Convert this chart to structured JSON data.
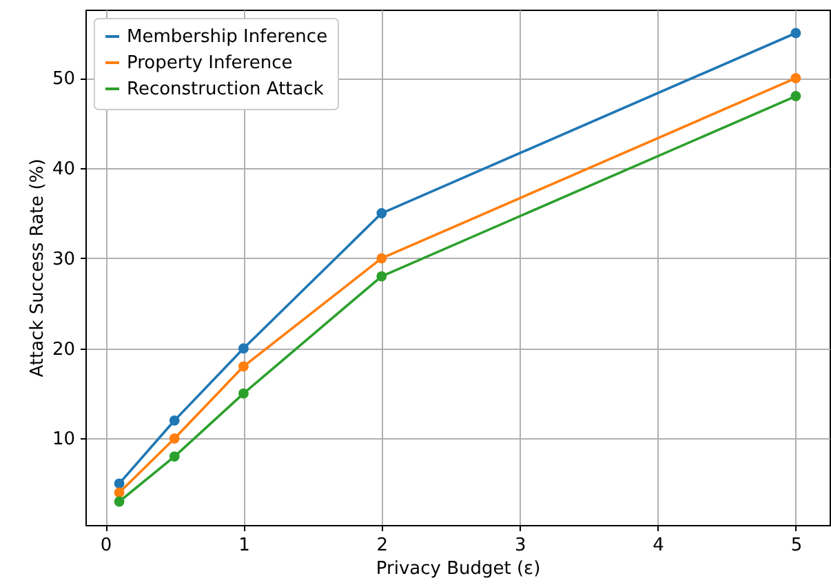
{
  "chart_data": {
    "type": "line",
    "xlabel": "Privacy Budget (ε)",
    "ylabel": "Attack Success Rate (%)",
    "x": [
      0.1,
      0.5,
      1,
      2,
      5
    ],
    "series": [
      {
        "name": "Membership Inference",
        "color": "#1f77b4",
        "values": [
          5,
          12,
          20,
          35,
          55
        ]
      },
      {
        "name": "Property Inference",
        "color": "#ff7f0e",
        "values": [
          4,
          10,
          18,
          30,
          50
        ]
      },
      {
        "name": "Reconstruction Attack",
        "color": "#2ca02c",
        "values": [
          3,
          8,
          15,
          28,
          48
        ]
      }
    ],
    "xlim": [
      -0.145,
      5.245
    ],
    "ylim": [
      0.4,
      57.6
    ],
    "xticks": [
      0,
      1,
      2,
      3,
      4,
      5
    ],
    "yticks": [
      10,
      20,
      30,
      40,
      50
    ],
    "grid": true,
    "legend": "top left",
    "marker": "circle",
    "line_style": "solid"
  }
}
